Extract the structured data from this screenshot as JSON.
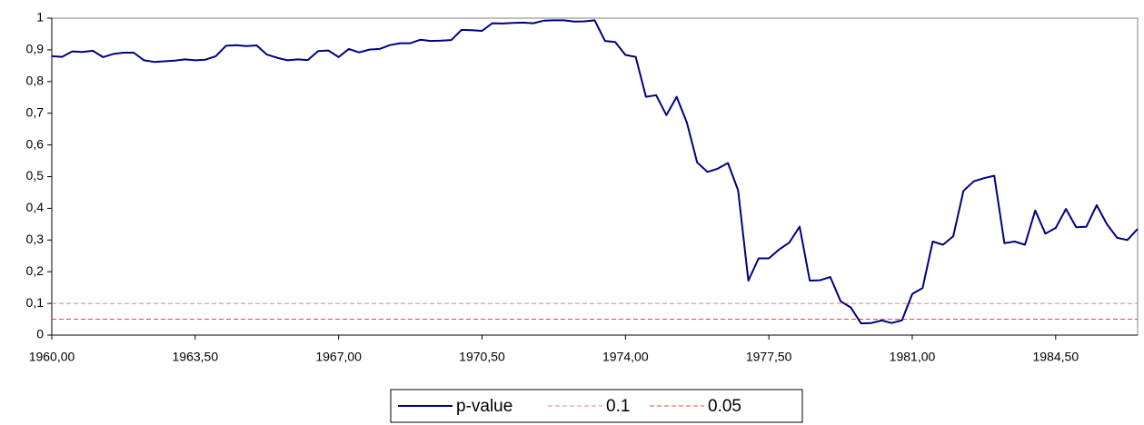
{
  "chart_data": {
    "type": "line",
    "x": [
      1960,
      1960.25,
      1960.5,
      1960.75,
      1961,
      1961.25,
      1961.5,
      1961.75,
      1962,
      1962.25,
      1962.5,
      1962.75,
      1963,
      1963.25,
      1963.5,
      1963.75,
      1964,
      1964.25,
      1964.5,
      1964.75,
      1965,
      1965.25,
      1965.5,
      1965.75,
      1966,
      1966.25,
      1966.5,
      1966.75,
      1967,
      1967.25,
      1967.5,
      1967.75,
      1968,
      1968.25,
      1968.5,
      1968.75,
      1969,
      1969.25,
      1969.5,
      1969.75,
      1970,
      1970.25,
      1970.5,
      1970.75,
      1971,
      1971.25,
      1971.5,
      1971.75,
      1972,
      1972.25,
      1972.5,
      1972.75,
      1973,
      1973.25,
      1973.5,
      1973.75,
      1974,
      1974.25,
      1974.5,
      1974.75,
      1975,
      1975.25,
      1975.5,
      1975.75,
      1976,
      1976.25,
      1976.5,
      1976.75,
      1977,
      1977.25,
      1977.5,
      1977.75,
      1978,
      1978.25,
      1978.5,
      1978.75,
      1979,
      1979.25,
      1979.5,
      1979.75,
      1980,
      1980.25,
      1980.5,
      1980.75,
      1981,
      1981.25,
      1981.5,
      1981.75,
      1982,
      1982.25,
      1982.5,
      1982.75,
      1983,
      1983.25,
      1983.5,
      1983.75,
      1984,
      1984.25,
      1984.5,
      1984.75,
      1985,
      1985.25,
      1985.5,
      1985.75,
      1986,
      1986.25,
      1986.5
    ],
    "series": [
      {
        "name": "p-value",
        "color": "#000080",
        "values": [
          0.88,
          0.878,
          0.895,
          0.893,
          0.897,
          0.877,
          0.887,
          0.891,
          0.891,
          0.867,
          0.862,
          0.864,
          0.866,
          0.87,
          0.867,
          0.869,
          0.88,
          0.913,
          0.915,
          0.912,
          0.914,
          0.885,
          0.875,
          0.867,
          0.87,
          0.868,
          0.896,
          0.898,
          0.877,
          0.903,
          0.892,
          0.901,
          0.903,
          0.915,
          0.921,
          0.921,
          0.932,
          0.928,
          0.929,
          0.931,
          0.963,
          0.962,
          0.96,
          0.984,
          0.983,
          0.985,
          0.986,
          0.984,
          0.992,
          0.993,
          0.993,
          0.989,
          0.99,
          0.993,
          0.928,
          0.925,
          0.884,
          0.878,
          0.752,
          0.757,
          0.694,
          0.752,
          0.67,
          0.545,
          0.515,
          0.525,
          0.543,
          0.457,
          0.172,
          0.242,
          0.242,
          0.27,
          0.292,
          0.342,
          0.172,
          0.173,
          0.183,
          0.107,
          0.087,
          0.037,
          0.038,
          0.046,
          0.038,
          0.047,
          0.13,
          0.148,
          0.295,
          0.285,
          0.312,
          0.455,
          0.485,
          0.495,
          0.503,
          0.29,
          0.295,
          0.285,
          0.393,
          0.32,
          0.338,
          0.398,
          0.34,
          0.342,
          0.41,
          0.35,
          0.307,
          0.3,
          0.335
        ]
      }
    ],
    "hlines": [
      {
        "name": "0.1",
        "value": 0.1,
        "color": "#e08080"
      },
      {
        "name": "0.05",
        "value": 0.05,
        "color": "#ff4040"
      }
    ],
    "xlim": [
      1960,
      1986.5
    ],
    "xticks": [
      {
        "value": 1960,
        "label": "1960,00"
      },
      {
        "value": 1963.5,
        "label": "1963,50"
      },
      {
        "value": 1967,
        "label": "1967,00"
      },
      {
        "value": 1970.5,
        "label": "1970,50"
      },
      {
        "value": 1974,
        "label": "1974,00"
      },
      {
        "value": 1977.5,
        "label": "1977,50"
      },
      {
        "value": 1981,
        "label": "1981,00"
      },
      {
        "value": 1984.5,
        "label": "1984,50"
      }
    ],
    "ylim": [
      0,
      1
    ],
    "yticks": [
      0,
      {
        "value": 0.1,
        "label": "0,1"
      },
      {
        "value": 0.2,
        "label": "0,2"
      },
      {
        "value": 0.3,
        "label": "0,3"
      },
      {
        "value": 0.4,
        "label": "0,4"
      },
      {
        "value": 0.5,
        "label": "0,5"
      },
      {
        "value": 0.6,
        "label": "0,6"
      },
      {
        "value": 0.7,
        "label": "0,7"
      },
      {
        "value": 0.8,
        "label": "0,8"
      },
      {
        "value": 0.9,
        "label": "0,9"
      },
      1
    ],
    "legend": "bottom"
  }
}
